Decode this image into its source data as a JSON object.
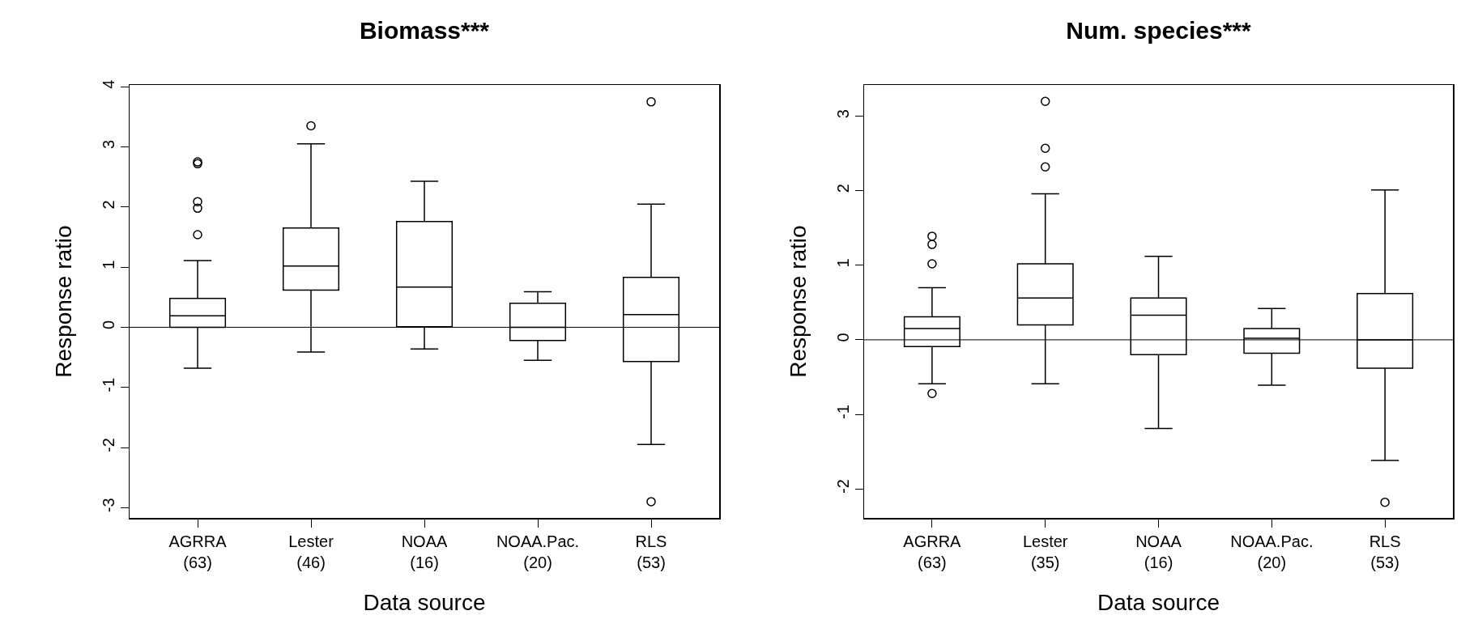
{
  "chart_data": [
    {
      "type": "box",
      "title": "Biomass***",
      "xlabel": "Data source",
      "ylabel": "Response ratio",
      "categories": [
        "AGRRA\n(63)",
        "Lester\n(46)",
        "NOAA\n(16)",
        "NOAA.Pac.\n(20)",
        "RLS\n(53)"
      ],
      "ylim": [
        -3.17,
        4.03
      ],
      "yticks": [
        -3,
        -2,
        -1,
        0,
        1,
        2,
        3,
        4
      ],
      "grid": false,
      "color": "#000000",
      "boxes": [
        {
          "low": -0.68,
          "q1": 0.0,
          "median": 0.19,
          "q3": 0.48,
          "high": 1.11,
          "outliers": [
            1.54,
            1.98,
            2.09,
            2.72,
            2.75
          ]
        },
        {
          "low": -0.41,
          "q1": 0.62,
          "median": 1.02,
          "q3": 1.65,
          "high": 3.05,
          "outliers": [
            3.35
          ]
        },
        {
          "low": -0.36,
          "q1": 0.01,
          "median": 0.67,
          "q3": 1.76,
          "high": 2.43
        },
        {
          "low": -0.55,
          "q1": -0.22,
          "median": 0.0,
          "q3": 0.4,
          "high": 0.59
        },
        {
          "low": -1.95,
          "q1": -0.57,
          "median": 0.21,
          "q3": 0.83,
          "high": 2.05,
          "outliers": [
            3.75,
            -2.9
          ]
        }
      ],
      "ref_lines": [
        {
          "axis": "y",
          "value": 0,
          "color": "#000000"
        }
      ]
    },
    {
      "type": "box",
      "title": "Num. species***",
      "xlabel": "Data source",
      "ylabel": "Response ratio",
      "categories": [
        "AGRRA\n(63)",
        "Lester\n(35)",
        "NOAA\n(16)",
        "NOAA.Pac.\n(20)",
        "RLS\n(53)"
      ],
      "ylim": [
        -2.39,
        3.42
      ],
      "yticks": [
        -2,
        -1,
        0,
        1,
        2,
        3
      ],
      "grid": false,
      "color": "#000000",
      "boxes": [
        {
          "low": -0.59,
          "q1": -0.09,
          "median": 0.15,
          "q3": 0.31,
          "high": 0.7,
          "outliers": [
            1.02,
            1.28,
            1.39,
            -0.72
          ]
        },
        {
          "low": -0.59,
          "q1": 0.2,
          "median": 0.56,
          "q3": 1.02,
          "high": 1.96,
          "outliers": [
            2.32,
            2.57,
            3.2
          ]
        },
        {
          "low": -1.19,
          "q1": -0.2,
          "median": 0.33,
          "q3": 0.56,
          "high": 1.12
        },
        {
          "low": -0.61,
          "q1": -0.18,
          "median": 0.02,
          "q3": 0.15,
          "high": 0.42
        },
        {
          "low": -1.62,
          "q1": -0.38,
          "median": 0.0,
          "q3": 0.62,
          "high": 2.01,
          "outliers": [
            -2.18
          ]
        }
      ],
      "ref_lines": [
        {
          "axis": "y",
          "value": 0,
          "color": "#000000"
        }
      ]
    }
  ]
}
